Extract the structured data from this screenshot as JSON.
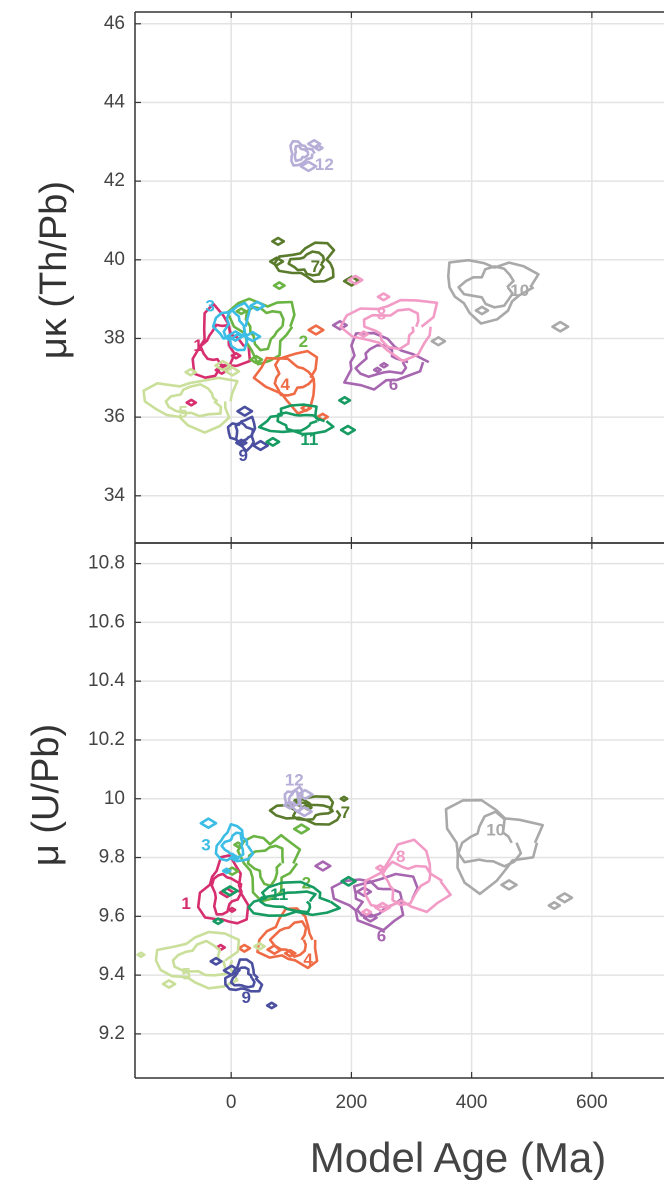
{
  "chart_data": [
    {
      "type": "contour",
      "panel": "top",
      "xlabel": "",
      "ylabel": "μκ (Th/Pb)",
      "xlim": [
        -160,
        720
      ],
      "ylim": [
        32.8,
        46.3
      ],
      "xticks": [
        0,
        200,
        400,
        600
      ],
      "yticks": [
        34,
        36,
        38,
        40,
        42,
        44,
        46
      ],
      "grid": true,
      "groups": [
        {
          "label": "1",
          "color": "#d62e6e",
          "label_xy": [
            -55,
            37.8
          ],
          "center": [
            -20,
            37.8
          ],
          "spread": [
            45,
            0.9
          ]
        },
        {
          "label": "2",
          "color": "#6ab443",
          "label_xy": [
            120,
            37.9
          ],
          "center": [
            55,
            38.3
          ],
          "spread": [
            55,
            0.9
          ]
        },
        {
          "label": "3",
          "color": "#3bbde6",
          "label_xy": [
            -35,
            38.8
          ],
          "center": [
            5,
            38.3
          ],
          "spread": [
            30,
            0.6
          ]
        },
        {
          "label": "4",
          "color": "#ef6b46",
          "label_xy": [
            90,
            36.8
          ],
          "center": [
            100,
            37.0
          ],
          "spread": [
            55,
            0.8
          ]
        },
        {
          "label": "5",
          "color": "#c9df9a",
          "label_xy": [
            -80,
            36.1
          ],
          "center": [
            -60,
            36.4
          ],
          "spread": [
            80,
            0.7
          ]
        },
        {
          "label": "6",
          "color": "#a766b0",
          "label_xy": [
            270,
            36.8
          ],
          "center": [
            250,
            37.4
          ],
          "spread": [
            70,
            0.7
          ]
        },
        {
          "label": "7",
          "color": "#5a7a2c",
          "label_xy": [
            140,
            39.8
          ],
          "center": [
            130,
            39.9
          ],
          "spread": [
            50,
            0.5
          ]
        },
        {
          "label": "8",
          "color": "#f29bc6",
          "label_xy": [
            250,
            38.6
          ],
          "center": [
            270,
            38.3
          ],
          "spread": [
            80,
            0.8
          ]
        },
        {
          "label": "9",
          "color": "#4b4fa0",
          "label_xy": [
            20,
            35.0
          ],
          "center": [
            20,
            35.6
          ],
          "spread": [
            25,
            0.4
          ]
        },
        {
          "label": "10",
          "color": "#a9a9a9",
          "label_xy": [
            480,
            39.2
          ],
          "center": [
            430,
            39.3
          ],
          "spread": [
            80,
            0.9
          ]
        },
        {
          "label": "11",
          "color": "#169b62",
          "label_xy": [
            130,
            35.4
          ],
          "center": [
            110,
            35.9
          ],
          "spread": [
            60,
            0.4
          ]
        },
        {
          "label": "12",
          "color": "#b6aed6",
          "label_xy": [
            155,
            42.4
          ],
          "center": [
            115,
            42.7
          ],
          "spread": [
            20,
            0.3
          ]
        }
      ]
    },
    {
      "type": "contour",
      "panel": "bottom",
      "xlabel": "Model Age (Ma)",
      "ylabel": "μ (U/Pb)",
      "xlim": [
        -160,
        720
      ],
      "ylim": [
        9.05,
        10.87
      ],
      "xticks": [
        0,
        200,
        400,
        600
      ],
      "yticks": [
        9.2,
        9.4,
        9.6,
        9.8,
        10,
        10.2,
        10.4,
        10.6,
        10.8
      ],
      "grid": true,
      "groups": [
        {
          "label": "1",
          "color": "#d62e6e",
          "label_xy": [
            -75,
            9.64
          ],
          "center": [
            -10,
            9.68
          ],
          "spread": [
            40,
            0.12
          ]
        },
        {
          "label": "2",
          "color": "#6ab443",
          "label_xy": [
            125,
            9.71
          ],
          "center": [
            60,
            9.78
          ],
          "spread": [
            50,
            0.12
          ]
        },
        {
          "label": "3",
          "color": "#3bbde6",
          "label_xy": [
            -42,
            9.84
          ],
          "center": [
            5,
            9.84
          ],
          "spread": [
            30,
            0.07
          ]
        },
        {
          "label": "4",
          "color": "#ef6b46",
          "label_xy": [
            128,
            9.45
          ],
          "center": [
            100,
            9.52
          ],
          "spread": [
            50,
            0.1
          ]
        },
        {
          "label": "5",
          "color": "#c9df9a",
          "label_xy": [
            -75,
            9.4
          ],
          "center": [
            -50,
            9.45
          ],
          "spread": [
            75,
            0.1
          ]
        },
        {
          "label": "6",
          "color": "#a766b0",
          "label_xy": [
            250,
            9.53
          ],
          "center": [
            240,
            9.66
          ],
          "spread": [
            70,
            0.1
          ]
        },
        {
          "label": "7",
          "color": "#5a7a2c",
          "label_xy": [
            190,
            9.95
          ],
          "center": [
            130,
            9.96
          ],
          "spread": [
            60,
            0.05
          ]
        },
        {
          "label": "8",
          "color": "#f29bc6",
          "label_xy": [
            282,
            9.8
          ],
          "center": [
            290,
            9.72
          ],
          "spread": [
            70,
            0.12
          ]
        },
        {
          "label": "9",
          "color": "#4b4fa0",
          "label_xy": [
            25,
            9.32
          ],
          "center": [
            20,
            9.39
          ],
          "spread": [
            30,
            0.06
          ]
        },
        {
          "label": "10",
          "color": "#a9a9a9",
          "label_xy": [
            440,
            9.89
          ],
          "center": [
            430,
            9.85
          ],
          "spread": [
            80,
            0.15
          ]
        },
        {
          "label": "11",
          "color": "#169b62",
          "label_xy": [
            80,
            9.67
          ],
          "center": [
            100,
            9.65
          ],
          "spread": [
            80,
            0.06
          ]
        },
        {
          "label": "12",
          "color": "#b6aed6",
          "label_xy": [
            105,
            10.06
          ],
          "center": [
            105,
            10.0
          ],
          "spread": [
            15,
            0.04
          ]
        }
      ]
    }
  ]
}
